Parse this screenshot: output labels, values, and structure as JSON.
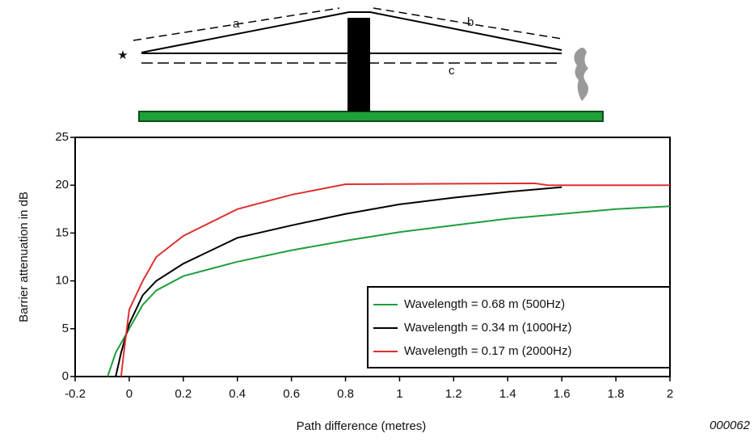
{
  "diagram": {
    "labels": [
      "a",
      "b",
      "c"
    ]
  },
  "figure_id": "000062",
  "chart_data": {
    "type": "line",
    "xlabel": "Path difference (metres)",
    "ylabel": "Barrier attenuation in dB",
    "xlim": [
      -0.2,
      2
    ],
    "ylim": [
      0,
      25
    ],
    "xticks": [
      -0.2,
      0,
      0.2,
      0.4,
      0.6,
      0.8,
      1,
      1.2,
      1.4,
      1.6,
      1.8,
      2
    ],
    "yticks": [
      0,
      5,
      10,
      15,
      20,
      25
    ],
    "grid": false,
    "legend": "lower right",
    "series": [
      {
        "name": "Wavelength = 0.68 m (500Hz)",
        "color": "#1f9e3a",
        "x": [
          -0.08,
          -0.05,
          0,
          0.05,
          0.1,
          0.2,
          0.4,
          0.6,
          0.8,
          1.0,
          1.2,
          1.4,
          1.6,
          1.8,
          2.0
        ],
        "values": [
          0,
          2.5,
          5,
          7.5,
          9,
          10.5,
          12,
          13.2,
          14.2,
          15.1,
          15.8,
          16.5,
          17,
          17.5,
          17.8
        ]
      },
      {
        "name": "Wavelength = 0.34 m (1000Hz)",
        "color": "#000000",
        "x": [
          -0.05,
          -0.03,
          0,
          0.05,
          0.1,
          0.2,
          0.4,
          0.6,
          0.8,
          1.0,
          1.2,
          1.4,
          1.6
        ],
        "values": [
          0,
          2.5,
          5.5,
          8.5,
          10,
          11.8,
          14.5,
          15.8,
          17,
          18,
          18.7,
          19.3,
          19.8
        ]
      },
      {
        "name": "Wavelength = 0.17 m (2000Hz)",
        "color": "#e03030",
        "x": [
          -0.03,
          -0.02,
          0,
          0.05,
          0.1,
          0.2,
          0.4,
          0.6,
          0.8,
          1.5,
          1.55,
          2.0
        ],
        "values": [
          0,
          2.5,
          7,
          10,
          12.5,
          14.7,
          17.5,
          19,
          20.1,
          20.2,
          20,
          20
        ]
      }
    ]
  }
}
